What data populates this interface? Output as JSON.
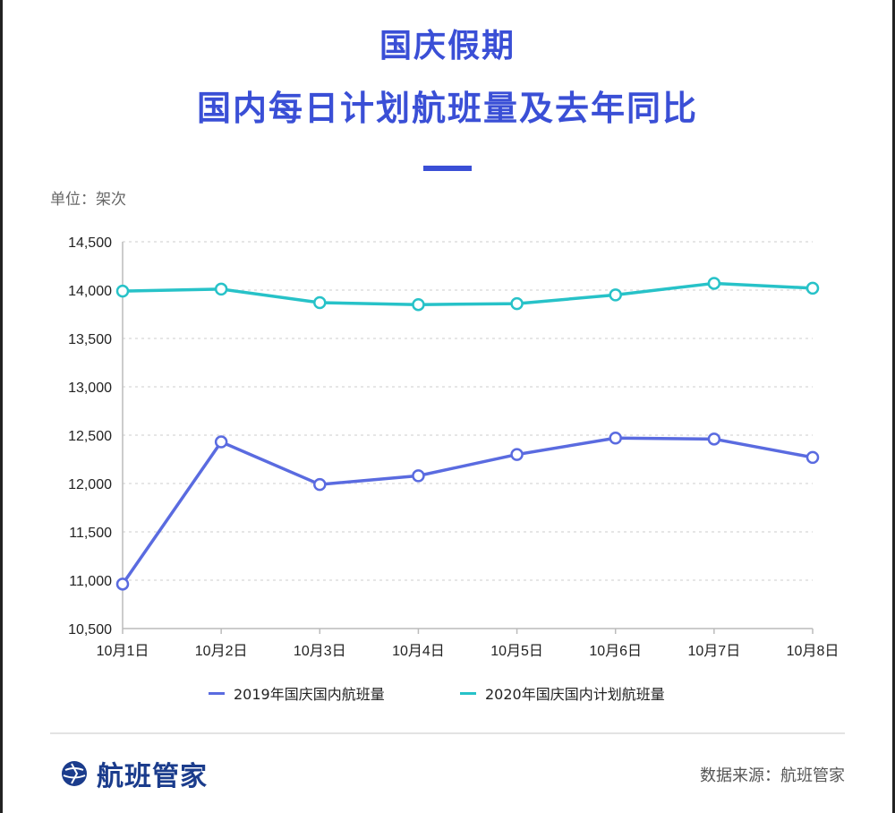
{
  "header": {
    "title_line1": "国庆假期",
    "title_line2": "国内每日计划航班量及去年同比"
  },
  "unit_label": "单位：架次",
  "colors": {
    "title": "#3a4fd6",
    "series_2019": "#5a6be0",
    "series_2020": "#27c2c8",
    "axis": "#bbbbbb",
    "grid": "#dddddd"
  },
  "chart_data": {
    "type": "line",
    "categories": [
      "10月1日",
      "10月2日",
      "10月3日",
      "10月4日",
      "10月5日",
      "10月6日",
      "10月7日",
      "10月8日"
    ],
    "y_ticks": [
      10500,
      11000,
      11500,
      12000,
      12500,
      13000,
      13500,
      14000,
      14500
    ],
    "y_tick_labels": [
      "10,500",
      "11,000",
      "11,500",
      "12,000",
      "12,500",
      "13,000",
      "13,500",
      "14,000",
      "14,500"
    ],
    "ylim": [
      10500,
      14500
    ],
    "grid": true,
    "legend_position": "bottom",
    "series": [
      {
        "name": "2019年国庆国内航班量",
        "values": [
          10960,
          12430,
          11990,
          12080,
          12300,
          12470,
          12460,
          12270
        ]
      },
      {
        "name": "2020年国庆国内计划航班量",
        "values": [
          13990,
          14010,
          13870,
          13850,
          13860,
          13950,
          14070,
          14020
        ]
      }
    ]
  },
  "legend": {
    "item1": "2019年国庆国内航班量",
    "item2": "2020年国庆国内计划航班量"
  },
  "footer": {
    "brand_name": "航班管家",
    "brand_icon": "globe-plane-icon",
    "source": "数据来源：航班管家"
  }
}
